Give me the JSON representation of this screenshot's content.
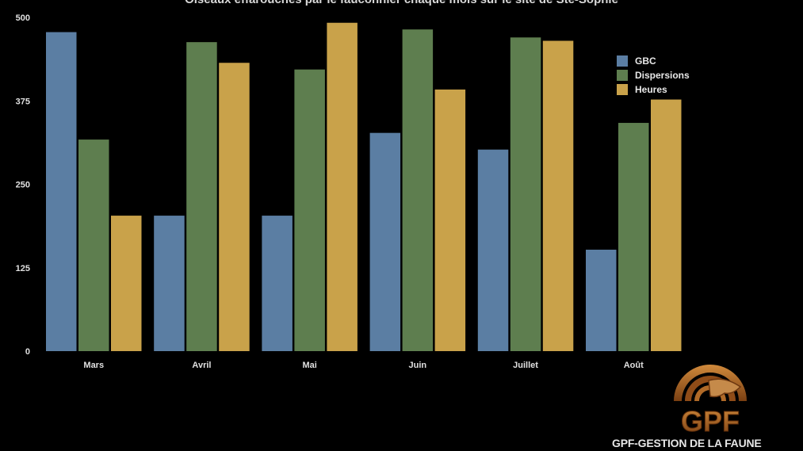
{
  "chart_data": {
    "type": "bar",
    "title": "Oiseaux effarouchés par le fauconnier chaque mois sur le site de Ste-Sophie",
    "categories": [
      "Mars",
      "Avril",
      "Mai",
      "Juin",
      "Juillet",
      "Août"
    ],
    "series": [
      {
        "name": "GBC",
        "color": "#5b7ea3",
        "values": [
          478,
          203,
          203,
          327,
          302,
          152
        ]
      },
      {
        "name": "Dispersions",
        "color": "#5e7e4f",
        "values": [
          317,
          463,
          422,
          482,
          470,
          342
        ]
      },
      {
        "name": "Heures",
        "color": "#c9a24a",
        "values": [
          203,
          432,
          492,
          392,
          465,
          377
        ]
      }
    ],
    "ylim": [
      0,
      500
    ],
    "yticks": [
      "0",
      "125",
      "250",
      "375",
      "500"
    ],
    "grid": false,
    "legend": "top-right"
  },
  "brand": {
    "logo_text": "GPF",
    "name": "GPF-GESTION DE LA FAUNE",
    "color": "#a05a1e"
  }
}
